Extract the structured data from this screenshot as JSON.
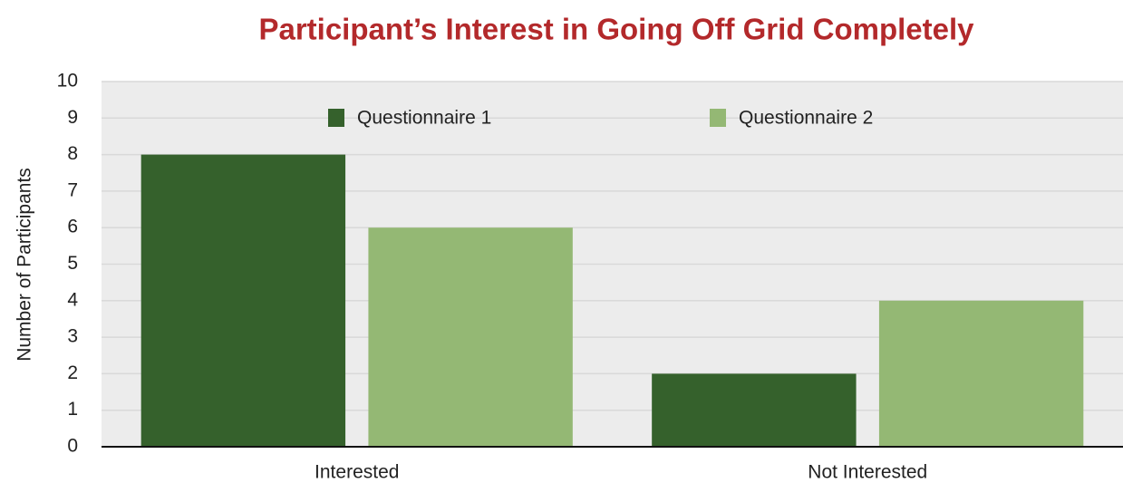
{
  "chart_data": {
    "type": "bar",
    "title": "Participant’s Interest in Going Off Grid Completely",
    "y_label": "Number of Participants",
    "categories": [
      "Interested",
      "Not Interested"
    ],
    "series": [
      {
        "name": "Questionnaire 1",
        "color": "#35612c",
        "values": [
          8,
          2
        ]
      },
      {
        "name": "Questionnaire 2",
        "color": "#94b874",
        "values": [
          6,
          4
        ]
      }
    ],
    "ylim": [
      0,
      10
    ],
    "yticks": [
      0,
      1,
      2,
      3,
      4,
      5,
      6,
      7,
      8,
      9,
      10
    ],
    "grid": true,
    "legend": "top"
  }
}
